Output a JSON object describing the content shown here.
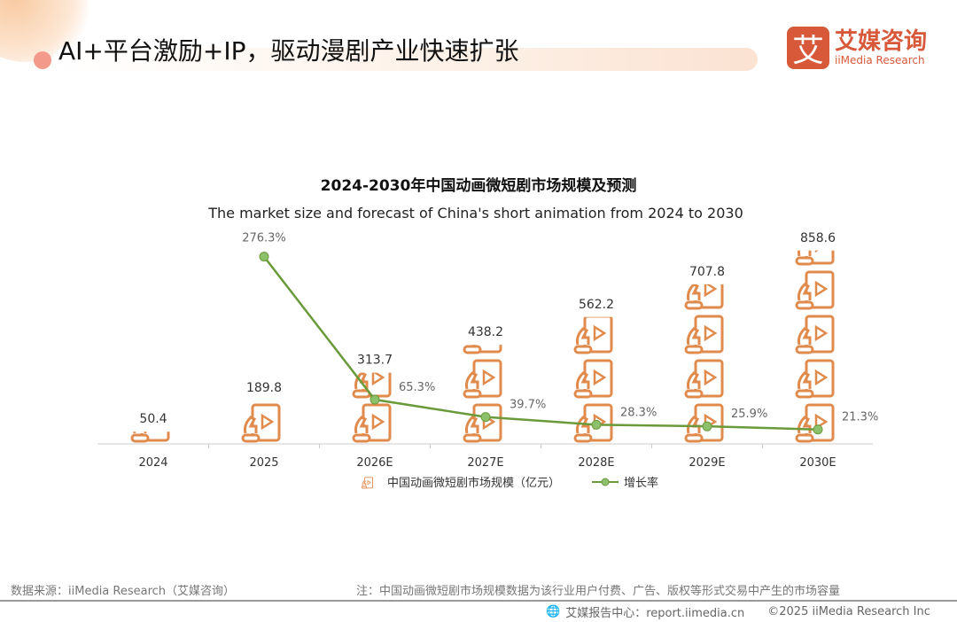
{
  "header": {
    "title": "AI+平台激励+IP，驱动漫剧产业快速扩张",
    "logo_mark": "艾",
    "logo_cn": "艾媒咨询",
    "logo_en": "iiMedia Research"
  },
  "chart_data": {
    "type": "bar+line",
    "title": "2024-2030年中国动画微短剧市场规模及预测",
    "subtitle": "The market size and forecast of China's short animation from 2024 to 2030",
    "categories": [
      "2024",
      "2025",
      "2026E",
      "2027E",
      "2028E",
      "2029E",
      "2030E"
    ],
    "series": [
      {
        "name": "中国动画微短剧市场规模（亿元）",
        "type": "pictorial-bar",
        "values": [
          50.4,
          189.8,
          313.7,
          438.2,
          562.2,
          707.8,
          858.6
        ],
        "labels": [
          "50.4",
          "189.8",
          "313.7",
          "438.2",
          "562.2",
          "707.8",
          "858.6"
        ],
        "color": "#e08a4c"
      },
      {
        "name": "增长率",
        "type": "line",
        "values": [
          null,
          276.3,
          65.3,
          39.7,
          28.3,
          25.9,
          21.3
        ],
        "labels": [
          "",
          "276.3%",
          "65.3%",
          "39.7%",
          "28.3%",
          "25.9%",
          "21.3%"
        ],
        "color": "#6a9a3a"
      }
    ],
    "legend": "bottom"
  },
  "footer": {
    "source": "数据来源：iiMedia Research（艾媒咨询）",
    "note": "注：中国动画微短剧市场规模数据为该行业用户付费、广告、版权等形式交易中产生的市场容量",
    "site": "艾媒报告中心：report.iimedia.cn",
    "copyright": "©2025  iiMedia Research  Inc"
  }
}
